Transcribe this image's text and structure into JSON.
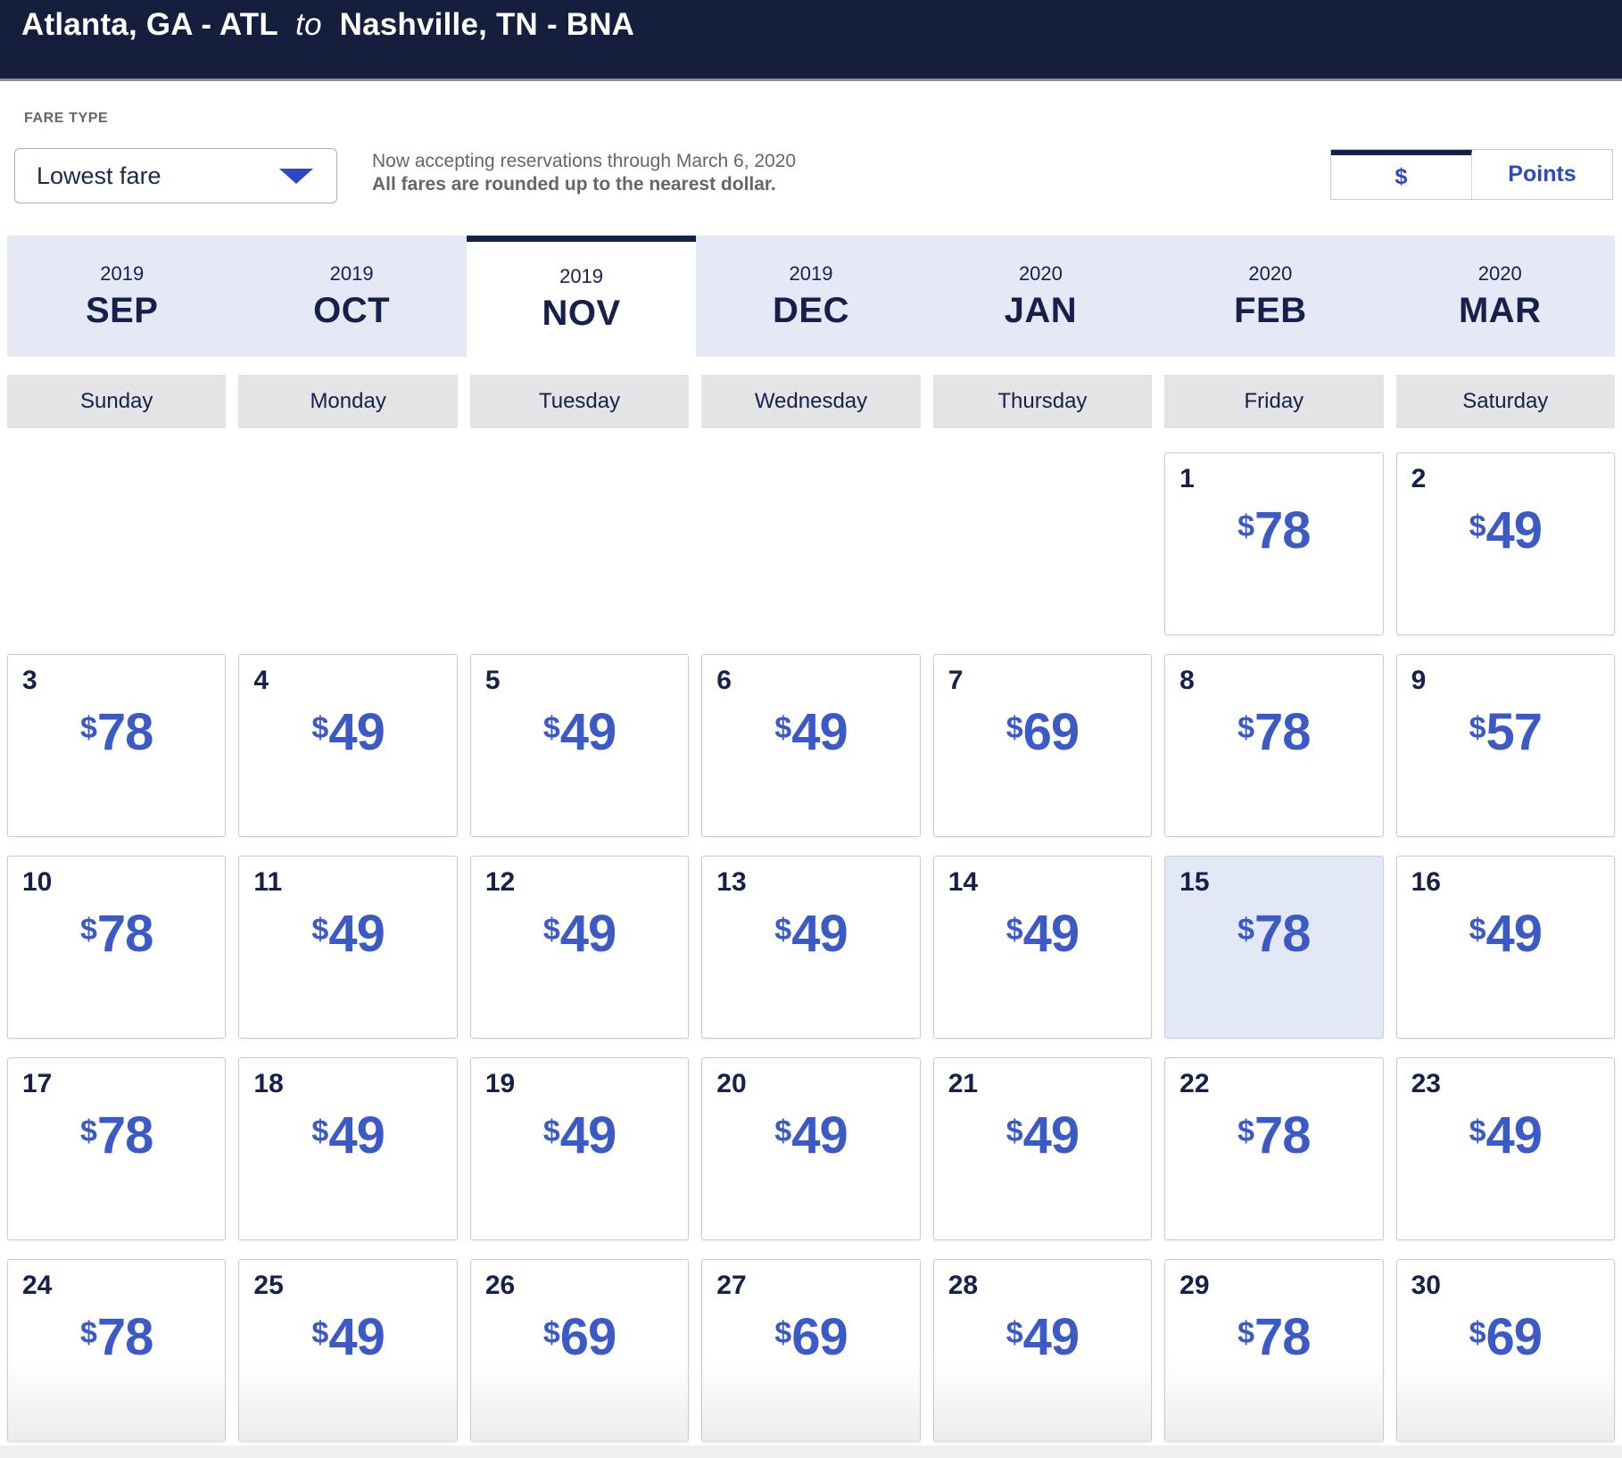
{
  "title": {
    "from": "Atlanta, GA - ATL",
    "connector": "to",
    "to": "Nashville, TN - BNA"
  },
  "fare_type": {
    "label": "FARE TYPE",
    "selected_option": "Lowest fare"
  },
  "notice": {
    "line1": "Now accepting reservations through March 6, 2020",
    "line2": "All fares are rounded up to the nearest dollar."
  },
  "currency_toggle": {
    "options": [
      {
        "label": "$",
        "selected": true
      },
      {
        "label": "Points",
        "selected": false
      }
    ]
  },
  "month_tabs": [
    {
      "year": "2019",
      "month": "SEP",
      "selected": false
    },
    {
      "year": "2019",
      "month": "OCT",
      "selected": false
    },
    {
      "year": "2019",
      "month": "NOV",
      "selected": true
    },
    {
      "year": "2019",
      "month": "DEC",
      "selected": false
    },
    {
      "year": "2020",
      "month": "JAN",
      "selected": false
    },
    {
      "year": "2020",
      "month": "FEB",
      "selected": false
    },
    {
      "year": "2020",
      "month": "MAR",
      "selected": false
    }
  ],
  "weekday_headers": [
    "Sunday",
    "Monday",
    "Tuesday",
    "Wednesday",
    "Thursday",
    "Friday",
    "Saturday"
  ],
  "calendar": {
    "leading_empty_cells": 5,
    "currency_symbol": "$",
    "days": [
      {
        "date": "1",
        "fare": "78"
      },
      {
        "date": "2",
        "fare": "49"
      },
      {
        "date": "3",
        "fare": "78"
      },
      {
        "date": "4",
        "fare": "49"
      },
      {
        "date": "5",
        "fare": "49"
      },
      {
        "date": "6",
        "fare": "49"
      },
      {
        "date": "7",
        "fare": "69"
      },
      {
        "date": "8",
        "fare": "78"
      },
      {
        "date": "9",
        "fare": "57"
      },
      {
        "date": "10",
        "fare": "78"
      },
      {
        "date": "11",
        "fare": "49"
      },
      {
        "date": "12",
        "fare": "49"
      },
      {
        "date": "13",
        "fare": "49"
      },
      {
        "date": "14",
        "fare": "49"
      },
      {
        "date": "15",
        "fare": "78",
        "highlighted": true
      },
      {
        "date": "16",
        "fare": "49"
      },
      {
        "date": "17",
        "fare": "78"
      },
      {
        "date": "18",
        "fare": "49"
      },
      {
        "date": "19",
        "fare": "49"
      },
      {
        "date": "20",
        "fare": "49"
      },
      {
        "date": "21",
        "fare": "49"
      },
      {
        "date": "22",
        "fare": "78"
      },
      {
        "date": "23",
        "fare": "49"
      },
      {
        "date": "24",
        "fare": "78"
      },
      {
        "date": "25",
        "fare": "49"
      },
      {
        "date": "26",
        "fare": "69"
      },
      {
        "date": "27",
        "fare": "69"
      },
      {
        "date": "28",
        "fare": "49"
      },
      {
        "date": "29",
        "fare": "78"
      },
      {
        "date": "30",
        "fare": "69"
      }
    ]
  },
  "colors": {
    "header_bg": "#151e3d",
    "accent_navy": "#16204a",
    "fare_blue": "#3b5ac6",
    "link_blue": "#2e47c2",
    "tab_bg": "#e5e9f5",
    "highlight_bg": "#e3e8f6",
    "weekday_bg": "#e4e4e6",
    "muted_text": "#63666a"
  }
}
